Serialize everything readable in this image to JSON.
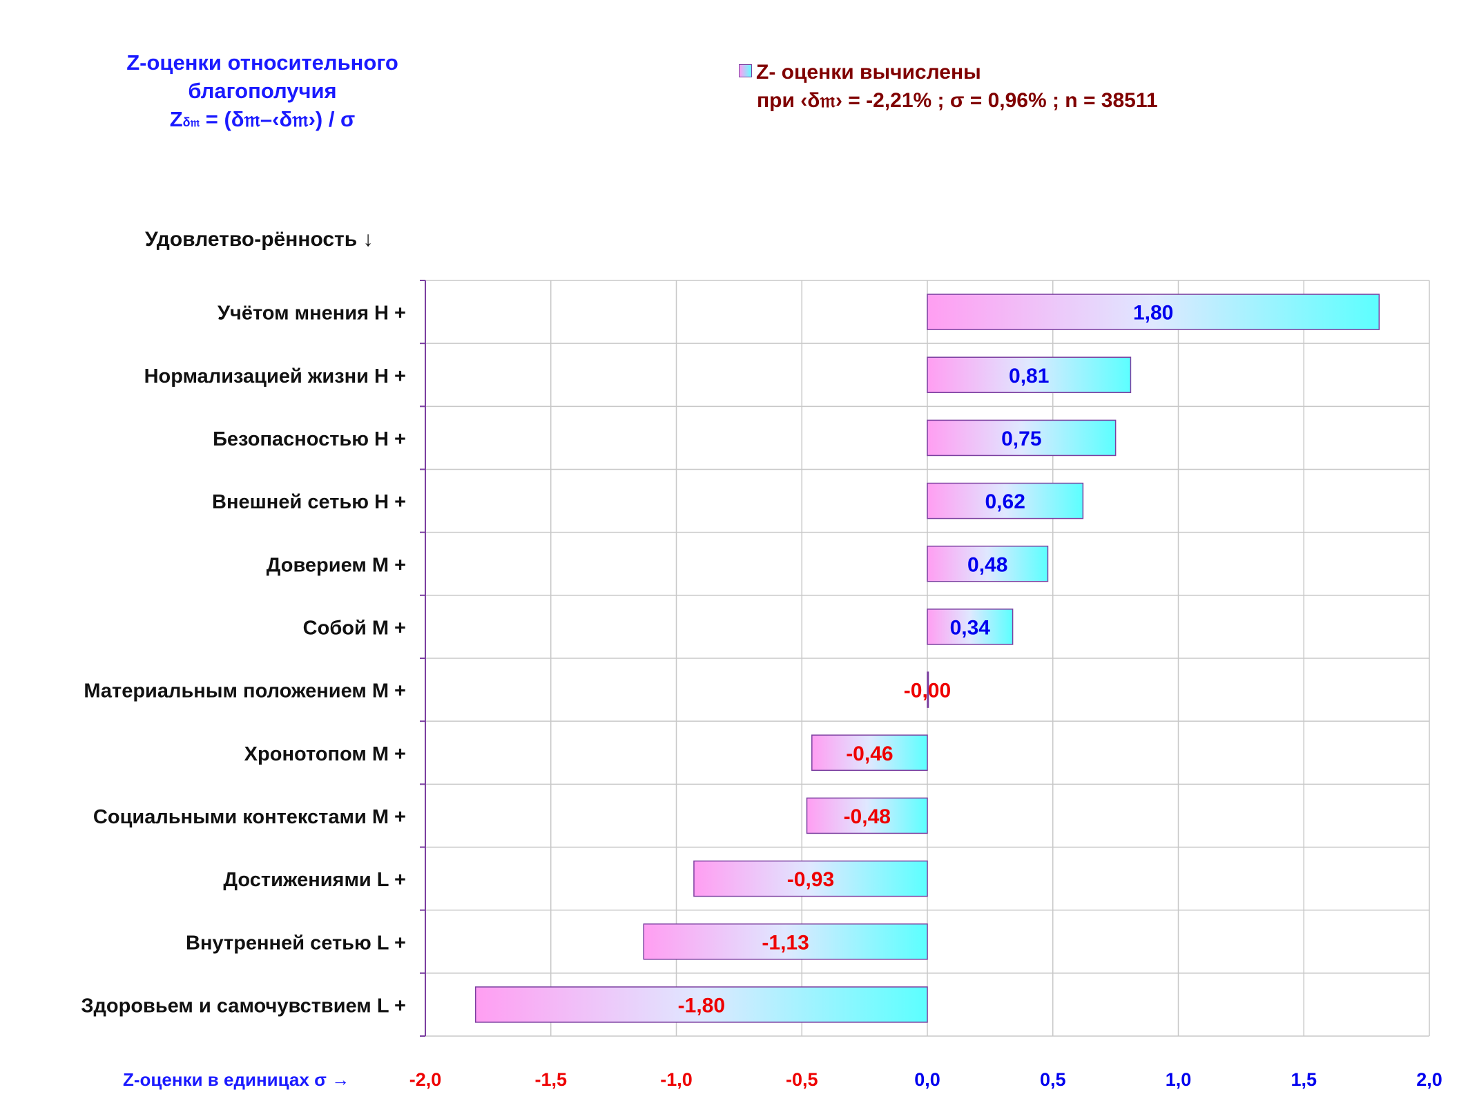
{
  "title": {
    "line1": "Z-оценки  относительного",
    "line2": "благополучия",
    "formula": "Z",
    "formula_sub": "δ𝔪",
    "formula_rest": " = (δ𝔪–‹δ𝔪›) / σ"
  },
  "legend": {
    "label": "Z- оценки вычислены",
    "params": "при ‹δ𝔪› = -2,21% ; σ = 0,96% ; n = 38511"
  },
  "category_header": "Удовлетво-рённость ↓",
  "axis_caption": "Z-оценки в единицах σ →",
  "colors": {
    "positive_label": "#0000ee",
    "negative_label": "#ee0000",
    "bar_left": "#ff9ef2",
    "bar_mid": "#dfe8ff",
    "bar_right": "#5cffff",
    "bar_border": "#7b3fa0",
    "grid": "#c8c8c8",
    "axis": "#7b3fa0"
  },
  "chart_data": {
    "type": "bar",
    "orientation": "horizontal",
    "categories": [
      "Учётом мнения  Н +",
      "Нормализацией жизни  Н +",
      "Безопасностью  Н +",
      "Внешней сетью  Н +",
      "Доверием  М +",
      "Собой  М +",
      "Материальным положением  М +",
      "Хронотопом  М +",
      "Социальными контекстами  М +",
      "Достижениями  L +",
      "Внутренней сетью  L +",
      "Здоровьем и самочувствием  L +"
    ],
    "values": [
      1.8,
      0.81,
      0.75,
      0.62,
      0.48,
      0.34,
      0.0,
      -0.46,
      -0.48,
      -0.93,
      -1.13,
      -1.8
    ],
    "value_labels": [
      "1,80",
      "0,81",
      "0,75",
      "0,62",
      "0,48",
      "0,34",
      "-0,00",
      "-0,46",
      "-0,48",
      "-0,93",
      "-1,13",
      "-1,80"
    ],
    "xlim": [
      -2.0,
      2.0
    ],
    "xticks": [
      -2.0,
      -1.5,
      -1.0,
      -0.5,
      0.0,
      0.5,
      1.0,
      1.5,
      2.0
    ],
    "xtick_labels": [
      "-2,0",
      "-1,5",
      "-1,0",
      "-0,5",
      "0,0",
      "0,5",
      "1,0",
      "1,5",
      "2,0"
    ],
    "grid": true,
    "legend_position": "top-right"
  }
}
